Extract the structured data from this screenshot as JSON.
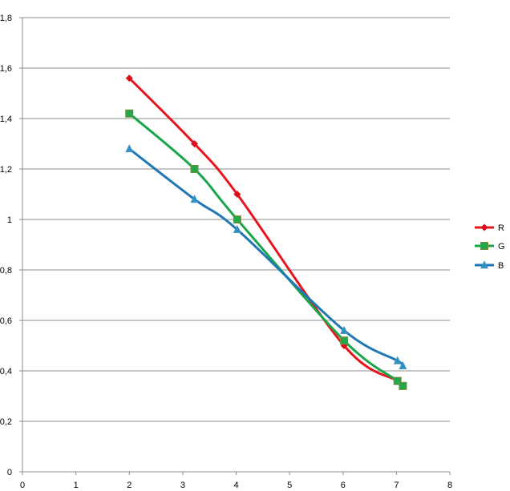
{
  "chart_data": {
    "type": "line",
    "title": "",
    "xlabel": "",
    "ylabel": "",
    "xlim": [
      0,
      8
    ],
    "ylim": [
      0,
      1.8
    ],
    "x_ticks": [
      "0",
      "1",
      "2",
      "3",
      "4",
      "5",
      "6",
      "7",
      "8"
    ],
    "y_ticks": [
      "0",
      "0,2",
      "0,4",
      "0,6",
      "0,8",
      "1",
      "1,2",
      "1,4",
      "1,6",
      "1,8"
    ],
    "grid": "horizontal",
    "legend_position": "right",
    "smooth": true,
    "series": [
      {
        "name": "R",
        "color": "#e8141c",
        "marker": "diamond",
        "x": [
          2,
          3.22,
          4.02,
          6.02,
          7.02,
          7.12
        ],
        "y": [
          1.56,
          1.3,
          1.1,
          0.5,
          0.36,
          0.34
        ]
      },
      {
        "name": "G",
        "color": "#1aa64a",
        "marker": "square",
        "x": [
          2,
          3.22,
          4.02,
          6.02,
          7.02,
          7.12
        ],
        "y": [
          1.42,
          1.2,
          1.0,
          0.52,
          0.36,
          0.34
        ]
      },
      {
        "name": "B",
        "color": "#1f77b4",
        "marker": "triangle",
        "x": [
          2,
          3.22,
          4.02,
          6.02,
          7.02,
          7.12
        ],
        "y": [
          1.28,
          1.08,
          0.96,
          0.56,
          0.44,
          0.42
        ]
      }
    ]
  }
}
